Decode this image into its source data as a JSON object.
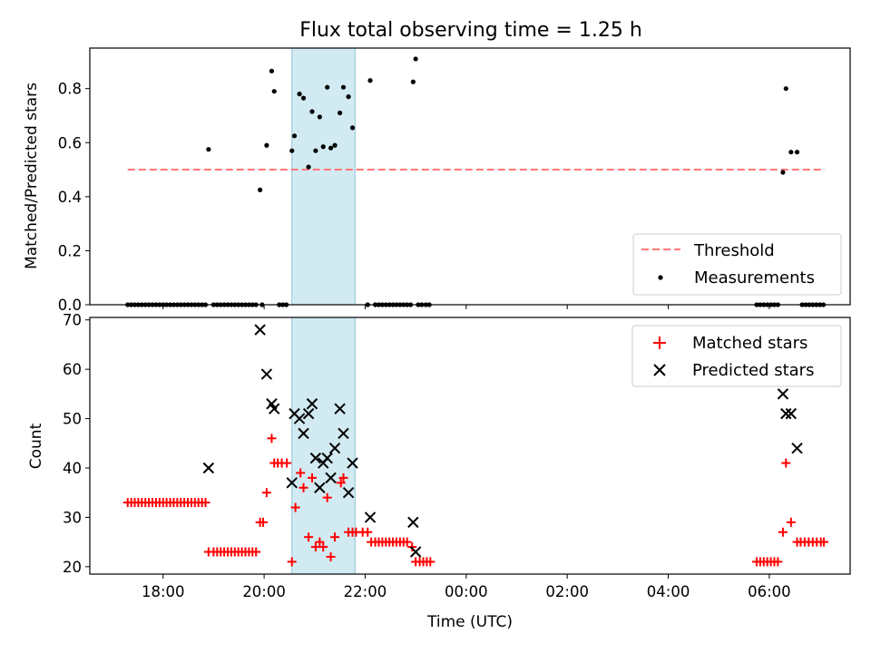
{
  "figure_title": "Flux total observing time = 1.25 h",
  "colors": {
    "threshold": "#ff7777",
    "measurements": "#000000",
    "matched": "#ff0000",
    "predicted": "#000000",
    "shade": "#add8e6"
  },
  "chart_data": [
    {
      "type": "scatter",
      "title": "Flux total observing time = 1.25 h",
      "xlabel": "",
      "ylabel": "Matched/Predicted stars",
      "xlim": [
        16.55,
        31.6
      ],
      "ylim": [
        0,
        0.95
      ],
      "yticks": [
        "0.0",
        "0.2",
        "0.4",
        "0.6",
        "0.8"
      ],
      "ytick_values": [
        0,
        0.2,
        0.4,
        0.6,
        0.8
      ],
      "shaded_span": [
        20.55,
        21.8
      ],
      "legend_position": "lower right",
      "series": [
        {
          "name": "Threshold",
          "kind": "dashed-line",
          "x": [
            17.3,
            31.1
          ],
          "y": [
            0.5,
            0.5
          ]
        },
        {
          "name": "Measurements",
          "kind": "dots",
          "points": [
            [
              17.3,
              0
            ],
            [
              17.37,
              0
            ],
            [
              17.44,
              0
            ],
            [
              17.51,
              0
            ],
            [
              17.58,
              0
            ],
            [
              17.65,
              0
            ],
            [
              17.72,
              0
            ],
            [
              17.79,
              0
            ],
            [
              17.86,
              0
            ],
            [
              17.93,
              0
            ],
            [
              18.0,
              0
            ],
            [
              18.07,
              0
            ],
            [
              18.14,
              0
            ],
            [
              18.21,
              0
            ],
            [
              18.28,
              0
            ],
            [
              18.35,
              0
            ],
            [
              18.42,
              0
            ],
            [
              18.49,
              0
            ],
            [
              18.56,
              0
            ],
            [
              18.63,
              0
            ],
            [
              18.7,
              0
            ],
            [
              18.77,
              0
            ],
            [
              18.84,
              0
            ],
            [
              18.9,
              0.575
            ],
            [
              19.0,
              0
            ],
            [
              19.07,
              0
            ],
            [
              19.14,
              0
            ],
            [
              19.21,
              0
            ],
            [
              19.28,
              0
            ],
            [
              19.35,
              0
            ],
            [
              19.42,
              0
            ],
            [
              19.49,
              0
            ],
            [
              19.56,
              0
            ],
            [
              19.63,
              0
            ],
            [
              19.7,
              0
            ],
            [
              19.77,
              0
            ],
            [
              19.84,
              0
            ],
            [
              19.92,
              0.425
            ],
            [
              19.96,
              0
            ],
            [
              20.05,
              0.59
            ],
            [
              20.15,
              0.865
            ],
            [
              20.2,
              0.79
            ],
            [
              20.3,
              0
            ],
            [
              20.37,
              0
            ],
            [
              20.44,
              0
            ],
            [
              20.55,
              0.57
            ],
            [
              20.6,
              0.625
            ],
            [
              20.7,
              0.78
            ],
            [
              20.78,
              0.765
            ],
            [
              20.88,
              0.51
            ],
            [
              20.95,
              0.715
            ],
            [
              21.02,
              0.57
            ],
            [
              21.1,
              0.695
            ],
            [
              21.17,
              0.585
            ],
            [
              21.25,
              0.805
            ],
            [
              21.32,
              0.58
            ],
            [
              21.4,
              0.59
            ],
            [
              21.5,
              0.71
            ],
            [
              21.57,
              0.805
            ],
            [
              21.67,
              0.77
            ],
            [
              21.75,
              0.655
            ],
            [
              22.05,
              0
            ],
            [
              22.1,
              0.83
            ],
            [
              22.2,
              0
            ],
            [
              22.27,
              0
            ],
            [
              22.34,
              0
            ],
            [
              22.41,
              0
            ],
            [
              22.48,
              0
            ],
            [
              22.55,
              0
            ],
            [
              22.62,
              0
            ],
            [
              22.69,
              0
            ],
            [
              22.76,
              0
            ],
            [
              22.83,
              0
            ],
            [
              22.9,
              0
            ],
            [
              22.95,
              0.825
            ],
            [
              23.0,
              0.91
            ],
            [
              23.05,
              0
            ],
            [
              23.12,
              0
            ],
            [
              23.2,
              0
            ],
            [
              23.27,
              0
            ],
            [
              29.75,
              0
            ],
            [
              29.82,
              0
            ],
            [
              29.89,
              0
            ],
            [
              29.96,
              0
            ],
            [
              30.03,
              0
            ],
            [
              30.1,
              0
            ],
            [
              30.17,
              0
            ],
            [
              30.27,
              0.49
            ],
            [
              30.33,
              0.8
            ],
            [
              30.43,
              0.565
            ],
            [
              30.55,
              0.565
            ],
            [
              30.65,
              0
            ],
            [
              30.72,
              0
            ],
            [
              30.79,
              0
            ],
            [
              30.86,
              0
            ],
            [
              30.93,
              0
            ],
            [
              31.0,
              0
            ],
            [
              31.07,
              0
            ]
          ]
        }
      ]
    },
    {
      "type": "scatter",
      "title": "",
      "xlabel": "Time (UTC)",
      "ylabel": "Count",
      "xlim": [
        16.55,
        31.6
      ],
      "ylim": [
        18.5,
        70.5
      ],
      "yticks": [
        "20",
        "30",
        "40",
        "50",
        "60",
        "70"
      ],
      "ytick_values": [
        20,
        30,
        40,
        50,
        60,
        70
      ],
      "xticks": [
        "18:00",
        "20:00",
        "22:00",
        "00:00",
        "02:00",
        "04:00",
        "06:00"
      ],
      "xtick_values": [
        18,
        20,
        22,
        24,
        26,
        28,
        30
      ],
      "shaded_span": [
        20.55,
        21.8
      ],
      "legend_position": "upper right",
      "series": [
        {
          "name": "Matched stars",
          "kind": "plus",
          "points": [
            [
              17.3,
              33
            ],
            [
              17.37,
              33
            ],
            [
              17.44,
              33
            ],
            [
              17.51,
              33
            ],
            [
              17.58,
              33
            ],
            [
              17.65,
              33
            ],
            [
              17.72,
              33
            ],
            [
              17.79,
              33
            ],
            [
              17.86,
              33
            ],
            [
              17.93,
              33
            ],
            [
              18.0,
              33
            ],
            [
              18.07,
              33
            ],
            [
              18.14,
              33
            ],
            [
              18.21,
              33
            ],
            [
              18.28,
              33
            ],
            [
              18.35,
              33
            ],
            [
              18.42,
              33
            ],
            [
              18.49,
              33
            ],
            [
              18.56,
              33
            ],
            [
              18.63,
              33
            ],
            [
              18.7,
              33
            ],
            [
              18.77,
              33
            ],
            [
              18.84,
              33
            ],
            [
              18.9,
              23
            ],
            [
              19.0,
              23
            ],
            [
              19.07,
              23
            ],
            [
              19.14,
              23
            ],
            [
              19.21,
              23
            ],
            [
              19.28,
              23
            ],
            [
              19.35,
              23
            ],
            [
              19.42,
              23
            ],
            [
              19.49,
              23
            ],
            [
              19.56,
              23
            ],
            [
              19.63,
              23
            ],
            [
              19.7,
              23
            ],
            [
              19.77,
              23
            ],
            [
              19.84,
              23
            ],
            [
              19.92,
              29
            ],
            [
              19.98,
              29
            ],
            [
              20.05,
              35
            ],
            [
              20.15,
              46
            ],
            [
              20.2,
              41
            ],
            [
              20.27,
              41
            ],
            [
              20.35,
              41
            ],
            [
              20.45,
              41
            ],
            [
              20.55,
              21
            ],
            [
              20.62,
              32
            ],
            [
              20.72,
              39
            ],
            [
              20.78,
              36
            ],
            [
              20.88,
              26
            ],
            [
              20.95,
              38
            ],
            [
              21.02,
              24
            ],
            [
              21.1,
              25
            ],
            [
              21.17,
              24
            ],
            [
              21.25,
              34
            ],
            [
              21.32,
              22
            ],
            [
              21.4,
              26
            ],
            [
              21.52,
              37
            ],
            [
              21.57,
              38
            ],
            [
              21.67,
              27
            ],
            [
              21.75,
              27
            ],
            [
              21.82,
              27
            ],
            [
              21.95,
              27
            ],
            [
              22.05,
              27
            ],
            [
              22.12,
              25
            ],
            [
              22.2,
              25
            ],
            [
              22.27,
              25
            ],
            [
              22.34,
              25
            ],
            [
              22.41,
              25
            ],
            [
              22.48,
              25
            ],
            [
              22.55,
              25
            ],
            [
              22.62,
              25
            ],
            [
              22.69,
              25
            ],
            [
              22.76,
              25
            ],
            [
              22.83,
              25
            ],
            [
              22.93,
              24
            ],
            [
              23.0,
              21
            ],
            [
              23.08,
              21
            ],
            [
              23.15,
              21
            ],
            [
              23.22,
              21
            ],
            [
              23.29,
              21
            ],
            [
              29.75,
              21
            ],
            [
              29.82,
              21
            ],
            [
              29.89,
              21
            ],
            [
              29.96,
              21
            ],
            [
              30.03,
              21
            ],
            [
              30.1,
              21
            ],
            [
              30.17,
              21
            ],
            [
              30.27,
              27
            ],
            [
              30.33,
              41
            ],
            [
              30.43,
              29
            ],
            [
              30.55,
              25
            ],
            [
              30.62,
              25
            ],
            [
              30.7,
              25
            ],
            [
              30.78,
              25
            ],
            [
              30.86,
              25
            ],
            [
              30.94,
              25
            ],
            [
              31.02,
              25
            ],
            [
              31.08,
              25
            ]
          ]
        },
        {
          "name": "Predicted stars",
          "kind": "cross",
          "points": [
            [
              18.9,
              40
            ],
            [
              19.92,
              68
            ],
            [
              20.05,
              59
            ],
            [
              20.15,
              53
            ],
            [
              20.2,
              52
            ],
            [
              20.55,
              37
            ],
            [
              20.6,
              51
            ],
            [
              20.7,
              50
            ],
            [
              20.78,
              47
            ],
            [
              20.88,
              51
            ],
            [
              20.95,
              53
            ],
            [
              21.02,
              42
            ],
            [
              21.1,
              36
            ],
            [
              21.17,
              41
            ],
            [
              21.25,
              42
            ],
            [
              21.32,
              38
            ],
            [
              21.4,
              44
            ],
            [
              21.5,
              52
            ],
            [
              21.57,
              47
            ],
            [
              21.67,
              35
            ],
            [
              21.75,
              41
            ],
            [
              22.1,
              30
            ],
            [
              22.95,
              29
            ],
            [
              23.0,
              23
            ],
            [
              30.27,
              55
            ],
            [
              30.33,
              51
            ],
            [
              30.43,
              51
            ],
            [
              30.55,
              44
            ]
          ]
        }
      ]
    }
  ]
}
